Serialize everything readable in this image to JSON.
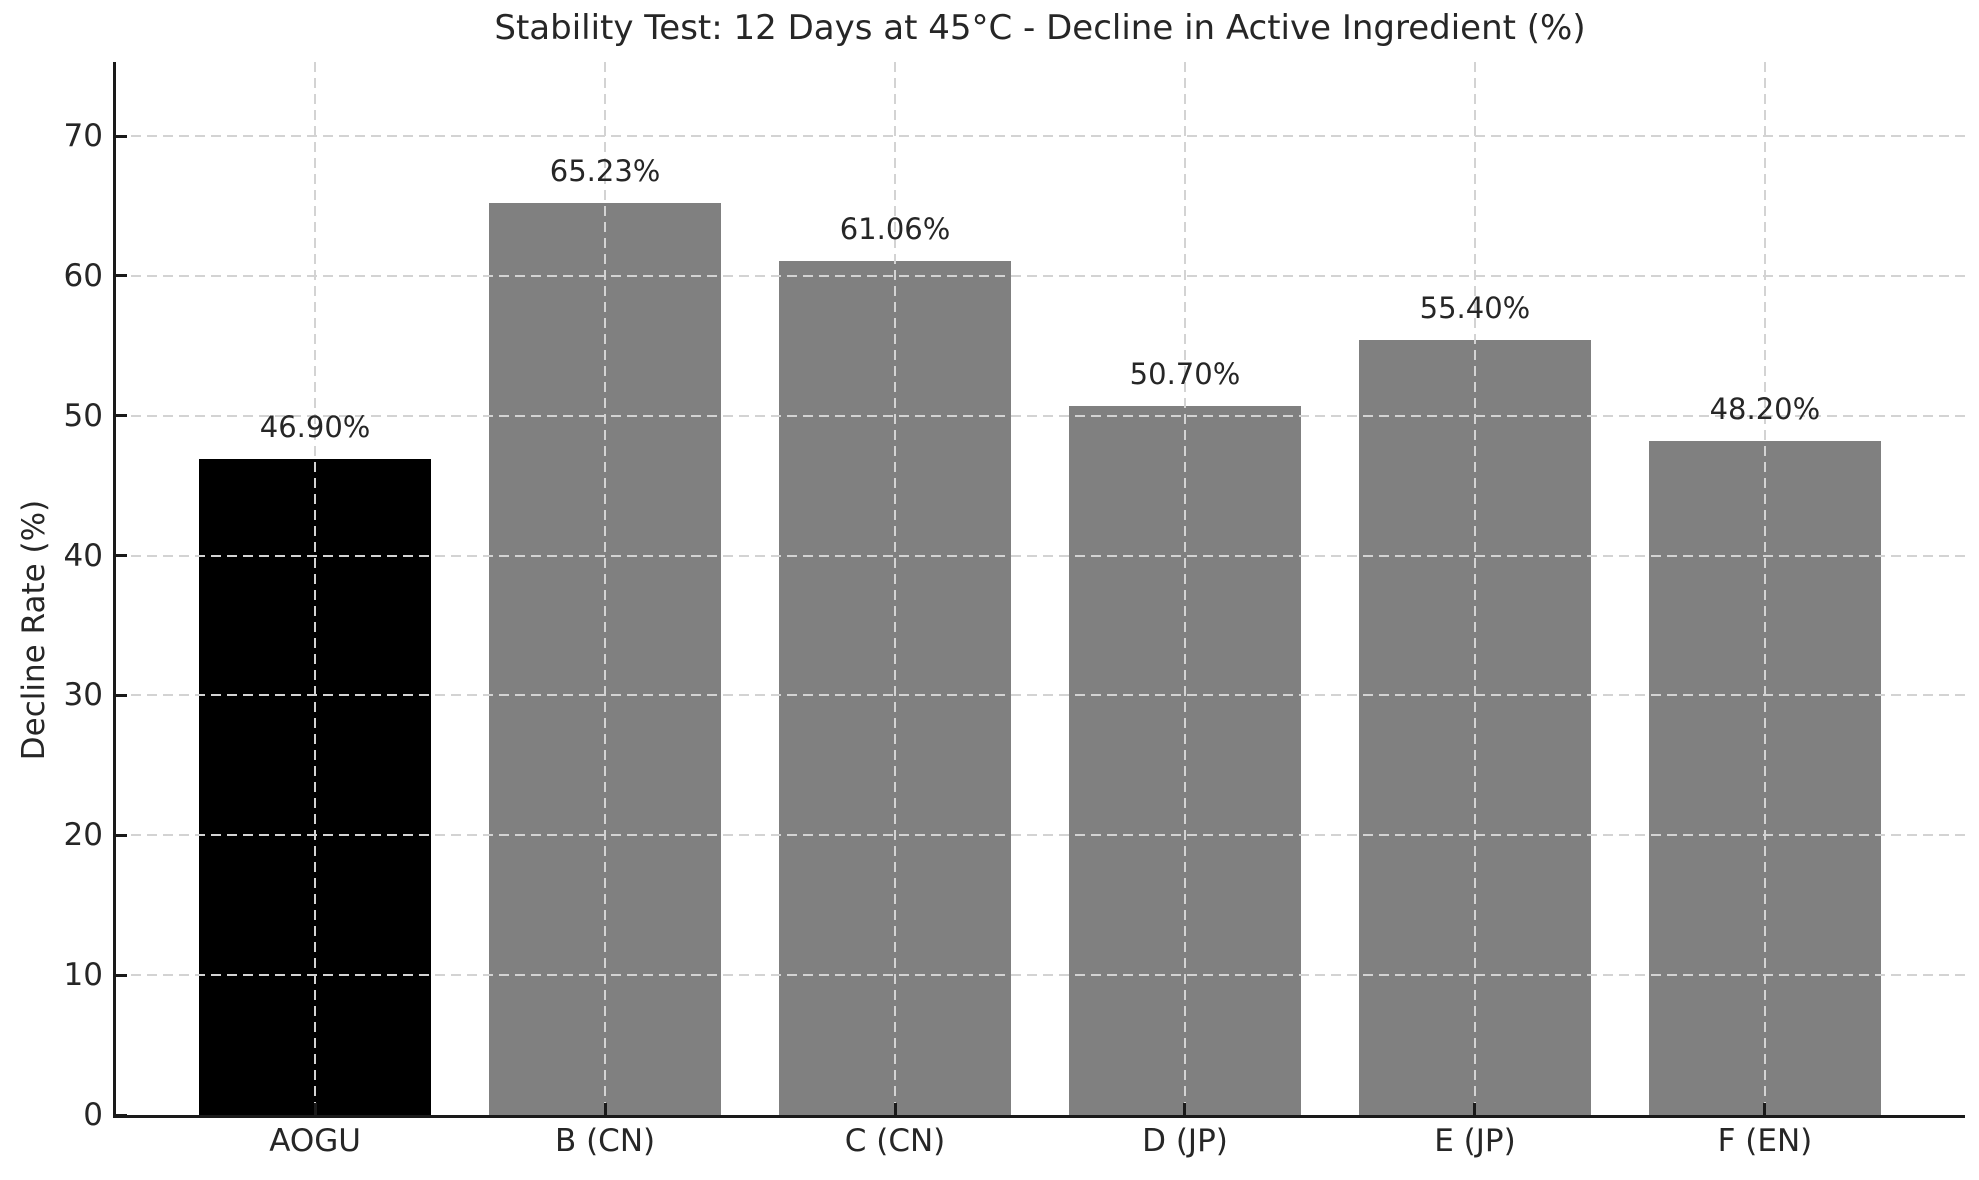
{
  "chart_data": {
    "type": "bar",
    "title": "Stability Test: 12 Days at 45°C - Decline in Active Ingredient (%)",
    "xlabel": "",
    "ylabel": "Decline Rate (%)",
    "categories": [
      "AOGU",
      "B (CN)",
      "C (CN)",
      "D (JP)",
      "E (JP)",
      "F (EN)"
    ],
    "values": [
      46.9,
      65.23,
      61.06,
      50.7,
      55.4,
      48.2
    ],
    "value_labels": [
      "46.90%",
      "65.23%",
      "61.06%",
      "50.70%",
      "55.40%",
      "48.20%"
    ],
    "bar_colors": [
      "#000000",
      "#808080",
      "#808080",
      "#808080",
      "#808080",
      "#808080"
    ],
    "yticks": [
      0,
      10,
      20,
      30,
      40,
      50,
      60,
      70
    ],
    "ylim": [
      0,
      75.3
    ],
    "bar_width_fraction": 0.8,
    "grid": "both-axes-dashed-drawn-over-bars",
    "legend": "none",
    "colors": {
      "highlight_bar": "#000000",
      "default_bar": "#808080",
      "grid": "#d3d3d3",
      "axis": "#1a1a1a",
      "text": "#262626",
      "background": "#ffffff"
    }
  }
}
